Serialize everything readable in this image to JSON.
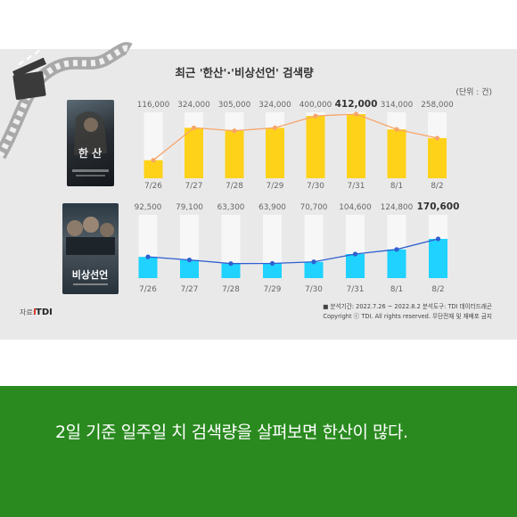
{
  "title": "최근 '한산'·'비상선언' 검색량",
  "unit": "(단위 : 건)",
  "source": {
    "label": "자료:",
    "brand": "TDI"
  },
  "poster_titles": {
    "top": "한 산",
    "bottom": "비상선언"
  },
  "footnote": {
    "line1": "■ 분석기간: 2022.7.26 ~ 2022.8.2   분석도구: TDI 데이터드래곤",
    "line2": "Copyright ⓒ TDI. All rights reserved. 무단전재 및 재배포 금지"
  },
  "caption": "2일 기준 일주일 치 검색량을 살펴보면 한산이 많다.",
  "colors": {
    "hansan": "#ffd21a",
    "hansan_line": "#f6a56a",
    "bisang": "#1fd2ff",
    "bisang_line": "#2f5fd0",
    "bg_bar": "#f7f7f7",
    "green": "#2a8a1f"
  },
  "chart_data": [
    {
      "type": "bar",
      "categories": [
        "7/26",
        "7/27",
        "7/28",
        "7/29",
        "7/30",
        "7/31",
        "8/1",
        "8/2"
      ],
      "values": [
        116000,
        324000,
        305000,
        324000,
        400000,
        412000,
        314000,
        258000
      ],
      "labels": [
        "116,000",
        "324,000",
        "305,000",
        "324,000",
        "400,000",
        "412,000",
        "314,000",
        "258,000"
      ],
      "bold_index": 5,
      "overlay": "line",
      "ylim": [
        0,
        412000
      ]
    },
    {
      "type": "bar",
      "categories": [
        "7/26",
        "7/27",
        "7/28",
        "7/29",
        "7/30",
        "7/31",
        "8/1",
        "8/2"
      ],
      "values": [
        92500,
        79100,
        63300,
        63900,
        70700,
        104600,
        124800,
        170600
      ],
      "labels": [
        "92,500",
        "79,100",
        "63,300",
        "63,900",
        "70,700",
        "104,600",
        "124,800",
        "170,600"
      ],
      "bold_index": 7,
      "overlay": "line",
      "ylim": [
        0,
        170600
      ]
    }
  ]
}
